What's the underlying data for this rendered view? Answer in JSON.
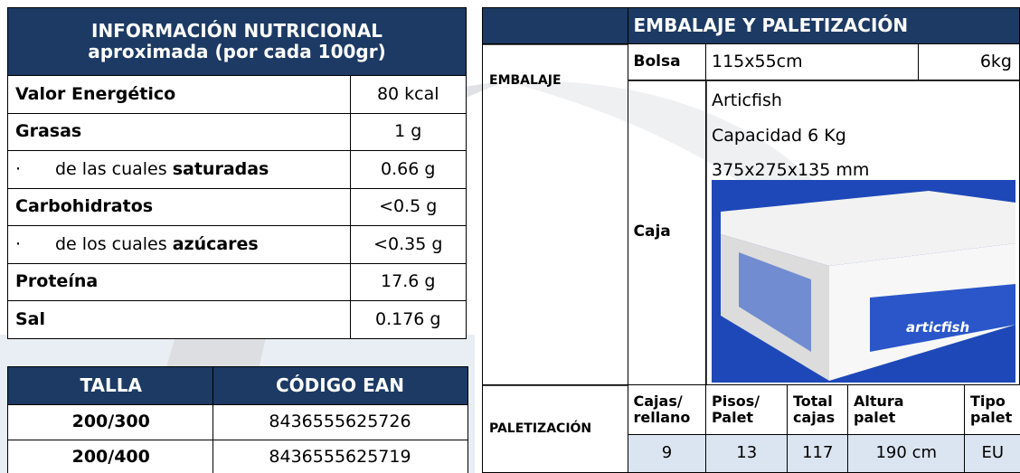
{
  "nutrition": {
    "title": [
      "INFORMACIÓN NUTRICIONAL",
      "aproximada (por cada 100gr)"
    ],
    "rows": [
      {
        "label": "Valor Energético",
        "value": "80 kcal"
      },
      {
        "label": "Grasas",
        "value": "1 g"
      },
      {
        "bullet": "·",
        "label": "de las cuales",
        "strong": "saturadas",
        "value": "0.66 g"
      },
      {
        "label": "Carbohidratos",
        "value": "<0.5 g"
      },
      {
        "bullet": "·",
        "label": "de los cuales",
        "strong": "azúcares",
        "value": "<0.35 g"
      },
      {
        "label": "Proteína",
        "value": "17.6 g"
      },
      {
        "label": "Sal",
        "value": "0.176 g"
      }
    ]
  },
  "sizes": {
    "headers": [
      "TALLA",
      "CÓDIGO EAN"
    ],
    "rows": [
      [
        "200/300",
        "8436555625726"
      ],
      [
        "200/400",
        "8436555625719"
      ]
    ]
  },
  "packaging": {
    "title": "EMBALAJE Y PALETIZACIÓN",
    "embalaje": "EMBALAJE",
    "bolsa": {
      "label": "Bolsa",
      "size": "115x55cm",
      "weight": "6kg"
    },
    "caja": {
      "label": "Caja",
      "lines": [
        "Articfish",
        "Capacidad 6 Kg",
        "375x275x135 mm"
      ],
      "image_text": "articfish"
    },
    "paletizacion": {
      "label": "PALETIZACIÓN",
      "headers": [
        [
          "Cajas/",
          "rellano"
        ],
        [
          "Pisos/",
          "Palet"
        ],
        [
          "Total",
          "cajas"
        ],
        [
          "Altura",
          "palet"
        ],
        [
          "Tipo",
          "palet"
        ]
      ],
      "values": [
        "9",
        "13",
        "117",
        "190 cm",
        "EU"
      ]
    }
  }
}
